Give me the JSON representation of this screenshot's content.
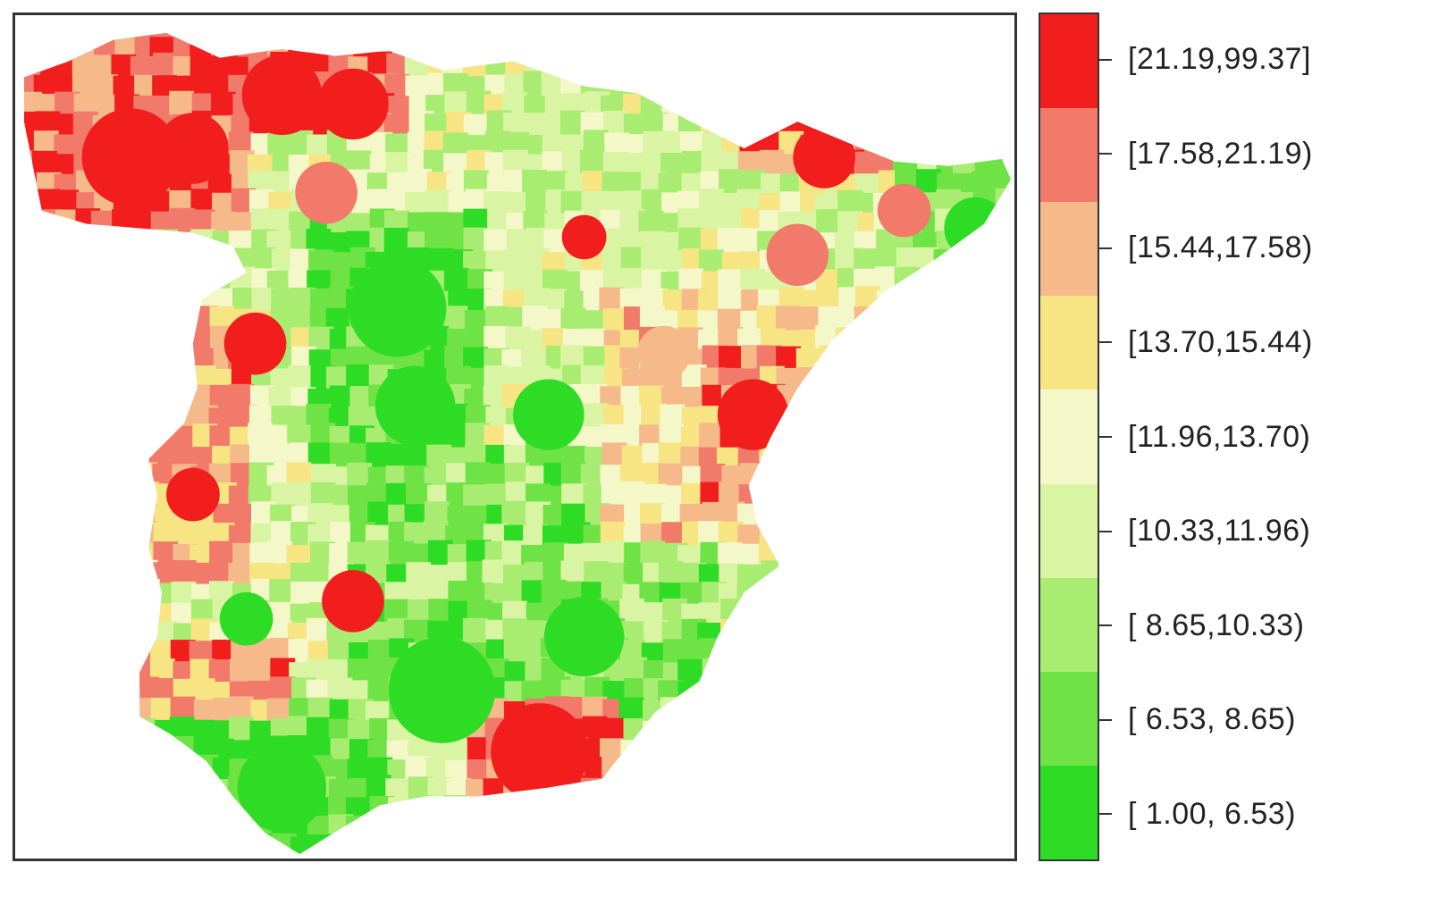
{
  "map": {
    "region": "Spain (peninsular)",
    "legend": {
      "classes": [
        {
          "label": "[21.19,99.37]",
          "color": "#f21e1e"
        },
        {
          "label": "[17.58,21.19)",
          "color": "#f27a6a"
        },
        {
          "label": "[15.44,17.58)",
          "color": "#f5b98a"
        },
        {
          "label": "[13.70,15.44)",
          "color": "#f7e483"
        },
        {
          "label": "[11.96,13.70)",
          "color": "#f4f7c8"
        },
        {
          "label": "[10.33,11.96)",
          "color": "#d9f5a3"
        },
        {
          "label": "[ 8.65,10.33)",
          "color": "#a8ec72"
        },
        {
          "label": "[ 6.53, 8.65)",
          "color": "#6fe345"
        },
        {
          "label": "[ 1.00, 6.53)",
          "color": "#2fdc25"
        }
      ]
    }
  }
}
